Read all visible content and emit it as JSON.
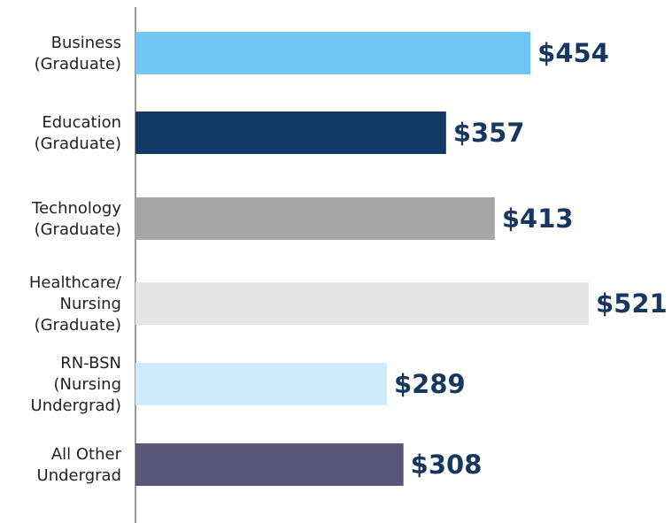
{
  "chart_data": {
    "type": "bar",
    "orientation": "horizontal",
    "categories": [
      [
        "Business",
        "(Graduate)"
      ],
      [
        "Education",
        "(Graduate)"
      ],
      [
        "Technology",
        "(Graduate)"
      ],
      [
        "Healthcare/",
        "Nursing",
        "(Graduate)"
      ],
      [
        "RN-BSN",
        "(Nursing",
        "Undergrad)"
      ],
      [
        "All Other",
        "Undergrad"
      ]
    ],
    "values": [
      454,
      357,
      413,
      521,
      289,
      308
    ],
    "value_labels": [
      "$454",
      "$357",
      "$413",
      "$521",
      "$289",
      "$308"
    ],
    "colors": [
      "#6ec6f2",
      "#133a67",
      "#a6a6a6",
      "#e6e6e6",
      "#cdebfa",
      "#5a5679"
    ]
  }
}
